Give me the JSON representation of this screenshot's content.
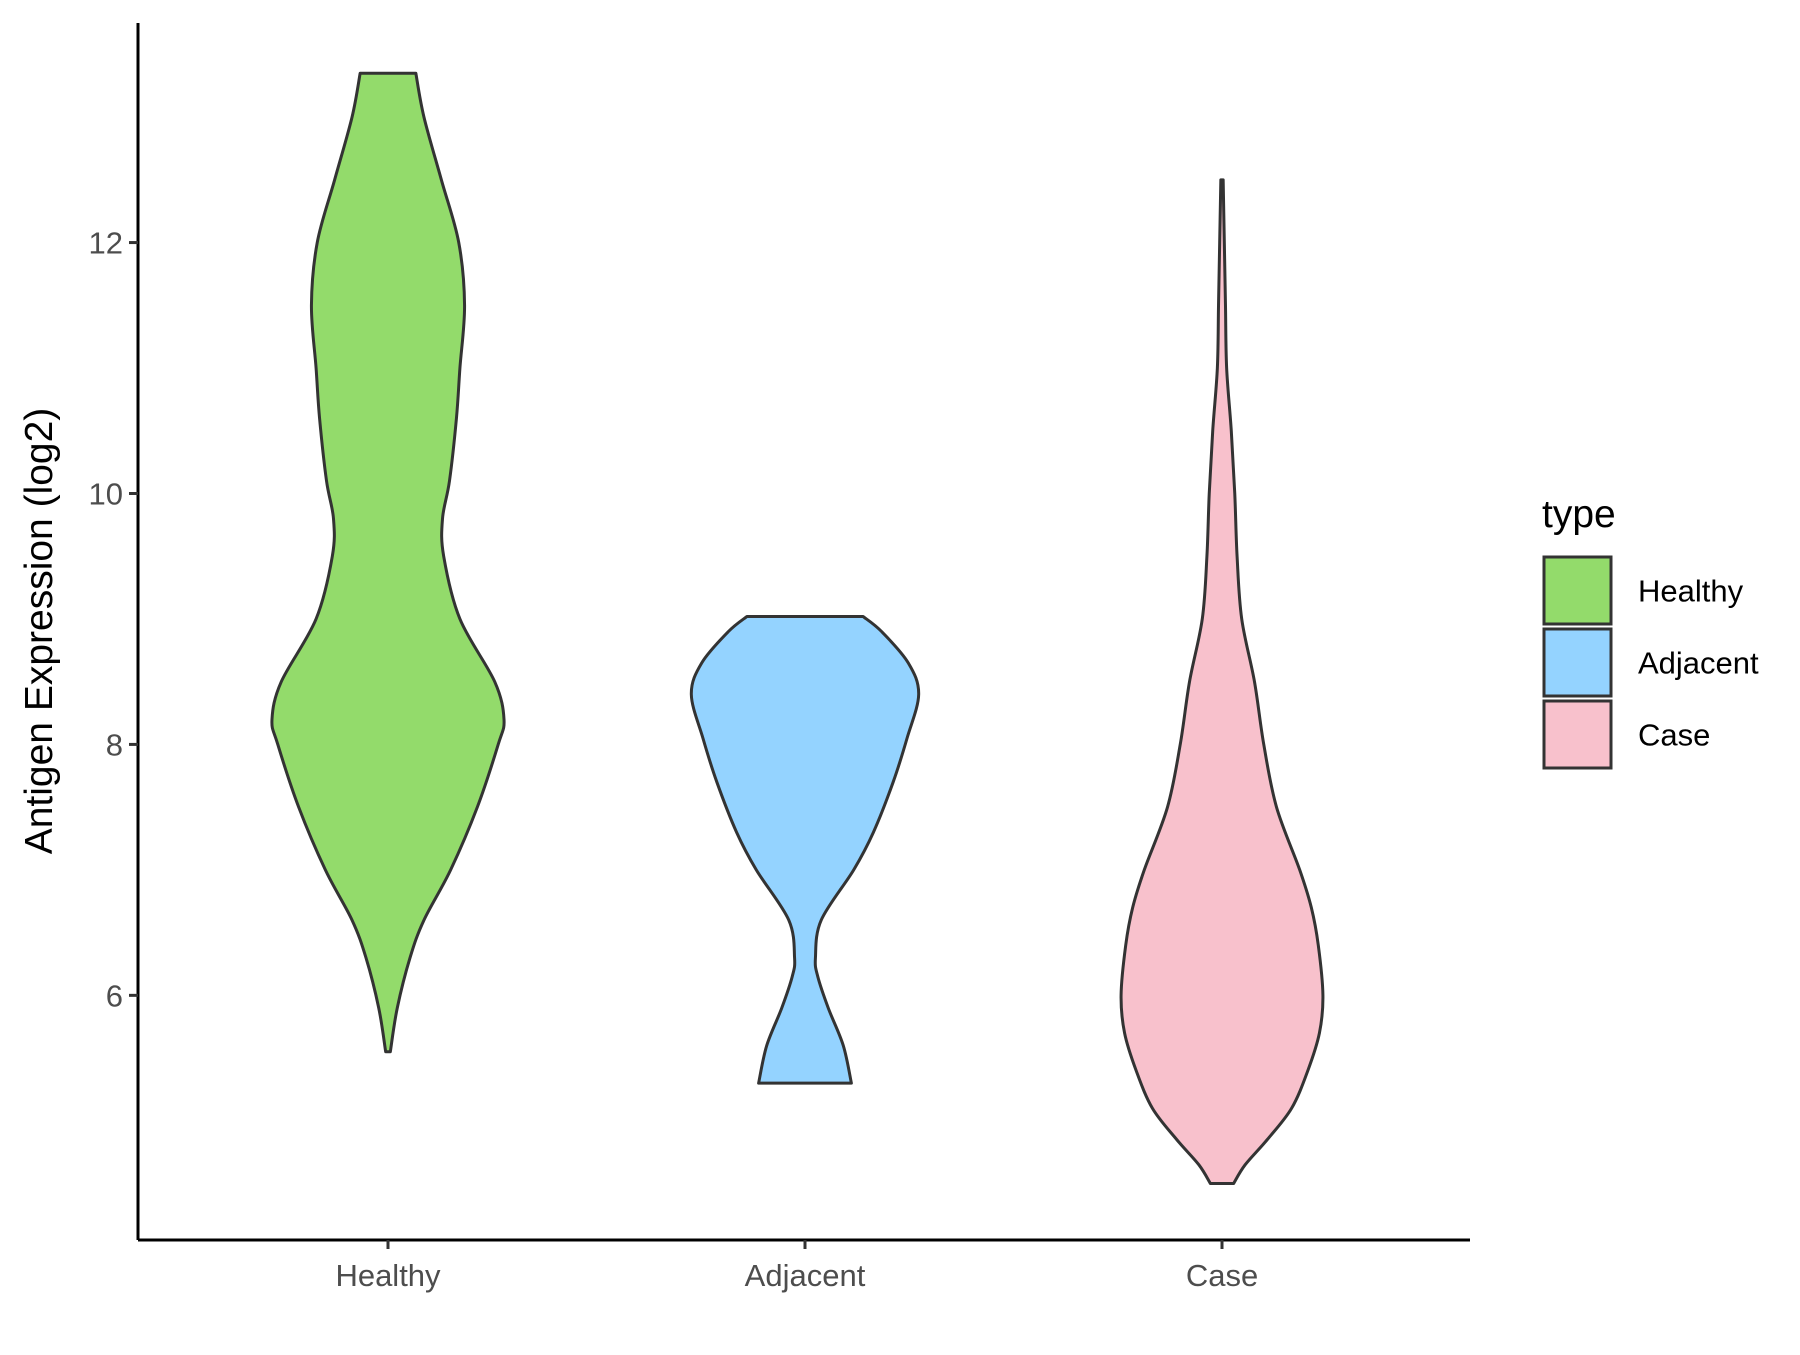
{
  "chart_data": {
    "type": "violin",
    "title": "",
    "xlabel": "",
    "ylabel": "Antigen Expression (log2)",
    "ylim": [
      4.05,
      13.75
    ],
    "yticks": [
      6,
      8,
      10,
      12
    ],
    "grid": false,
    "legend": {
      "title": "type",
      "placement": "right",
      "entries": [
        "Healthy",
        "Adjacent",
        "Case"
      ]
    },
    "categories": [
      "Healthy",
      "Adjacent",
      "Case"
    ],
    "series": [
      {
        "name": "Healthy",
        "color": "#93db6b",
        "min": 5.55,
        "max": 13.35,
        "density_profile": [
          [
            5.55,
            0.02
          ],
          [
            5.9,
            0.08
          ],
          [
            6.3,
            0.19
          ],
          [
            6.6,
            0.31
          ],
          [
            7.0,
            0.54
          ],
          [
            7.5,
            0.77
          ],
          [
            8.0,
            0.95
          ],
          [
            8.2,
            1.0
          ],
          [
            8.5,
            0.92
          ],
          [
            9.0,
            0.62
          ],
          [
            9.5,
            0.48
          ],
          [
            9.8,
            0.47
          ],
          [
            10.1,
            0.53
          ],
          [
            10.6,
            0.59
          ],
          [
            11.0,
            0.62
          ],
          [
            11.5,
            0.66
          ],
          [
            12.0,
            0.61
          ],
          [
            12.5,
            0.46
          ],
          [
            13.0,
            0.31
          ],
          [
            13.35,
            0.24
          ]
        ]
      },
      {
        "name": "Adjacent",
        "color": "#94d3ff",
        "min": 5.3,
        "max": 9.02,
        "density_profile": [
          [
            5.3,
            0.4
          ],
          [
            5.6,
            0.33
          ],
          [
            5.9,
            0.2
          ],
          [
            6.15,
            0.11
          ],
          [
            6.3,
            0.09
          ],
          [
            6.6,
            0.14
          ],
          [
            7.0,
            0.42
          ],
          [
            7.3,
            0.59
          ],
          [
            7.7,
            0.76
          ],
          [
            8.05,
            0.88
          ],
          [
            8.4,
            0.98
          ],
          [
            8.65,
            0.89
          ],
          [
            8.9,
            0.66
          ],
          [
            9.02,
            0.5
          ]
        ]
      },
      {
        "name": "Case",
        "color": "#f8c1cc",
        "min": 4.5,
        "max": 12.5,
        "density_profile": [
          [
            4.5,
            0.1
          ],
          [
            4.65,
            0.2
          ],
          [
            4.85,
            0.39
          ],
          [
            5.1,
            0.6
          ],
          [
            5.4,
            0.74
          ],
          [
            5.7,
            0.84
          ],
          [
            6.0,
            0.87
          ],
          [
            6.4,
            0.83
          ],
          [
            6.7,
            0.77
          ],
          [
            7.0,
            0.67
          ],
          [
            7.5,
            0.47
          ],
          [
            8.0,
            0.36
          ],
          [
            8.5,
            0.28
          ],
          [
            9.0,
            0.17
          ],
          [
            9.5,
            0.13
          ],
          [
            10.0,
            0.11
          ],
          [
            10.5,
            0.08
          ],
          [
            11.0,
            0.04
          ],
          [
            11.5,
            0.03
          ],
          [
            12.0,
            0.02
          ],
          [
            12.5,
            0.01
          ]
        ]
      }
    ]
  }
}
